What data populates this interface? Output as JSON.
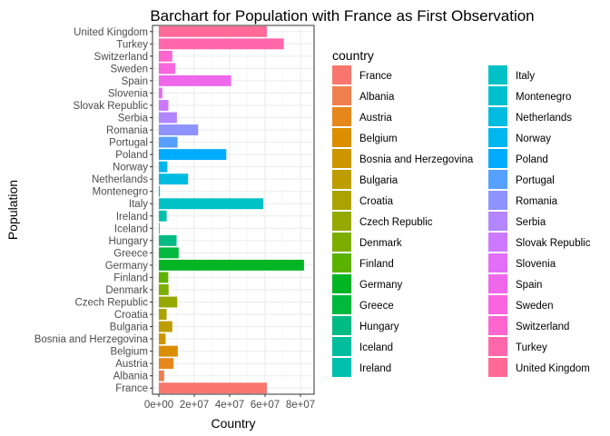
{
  "chart_data": {
    "type": "bar",
    "orientation": "horizontal",
    "title": "Barchart for Population with France as First Observation",
    "xlabel": "Country",
    "ylabel": "Population",
    "xlim": [
      0,
      85000000
    ],
    "x_ticks": [
      0,
      20000000,
      40000000,
      60000000,
      80000000
    ],
    "x_tick_labels": [
      "0e+00",
      "2e+07",
      "4e+07",
      "6e+07",
      "8e+07"
    ],
    "grid": true,
    "legend_title": "country",
    "legend_position": "right",
    "categories": [
      "France",
      "Albania",
      "Austria",
      "Belgium",
      "Bosnia and Herzegovina",
      "Bulgaria",
      "Croatia",
      "Czech Republic",
      "Denmark",
      "Finland",
      "Germany",
      "Greece",
      "Hungary",
      "Iceland",
      "Ireland",
      "Italy",
      "Montenegro",
      "Netherlands",
      "Norway",
      "Poland",
      "Portugal",
      "Romania",
      "Serbia",
      "Slovak Republic",
      "Slovenia",
      "Spain",
      "Sweden",
      "Switzerland",
      "Turkey",
      "United Kingdom"
    ],
    "values": [
      61000000,
      3000000,
      8300000,
      10700000,
      3800000,
      7600000,
      4400000,
      10400000,
      5500000,
      5300000,
      82000000,
      11200000,
      10000000,
      300000,
      4400000,
      59000000,
      600000,
      16500000,
      4800000,
      38100000,
      10600000,
      22200000,
      10200000,
      5400000,
      2000000,
      40800000,
      9200000,
      7600000,
      70600000,
      61000000
    ],
    "colors": [
      "#F8766D",
      "#F07F4F",
      "#E6871B",
      "#DB8E00",
      "#CD9600",
      "#BD9D00",
      "#AAA300",
      "#95A900",
      "#7CAE00",
      "#5BB300",
      "#00B524",
      "#00B93D",
      "#00BB83",
      "#00BE9C",
      "#00C0AE",
      "#00C1C6",
      "#00C0CE",
      "#00BCE1",
      "#00B6EE",
      "#00ABFD",
      "#56A0FF",
      "#8E93FF",
      "#B385FF",
      "#CD79FF",
      "#E26EF7",
      "#EF67EB",
      "#F865DE",
      "#FD65CF",
      "#FF67AA",
      "#FF6A98"
    ]
  }
}
